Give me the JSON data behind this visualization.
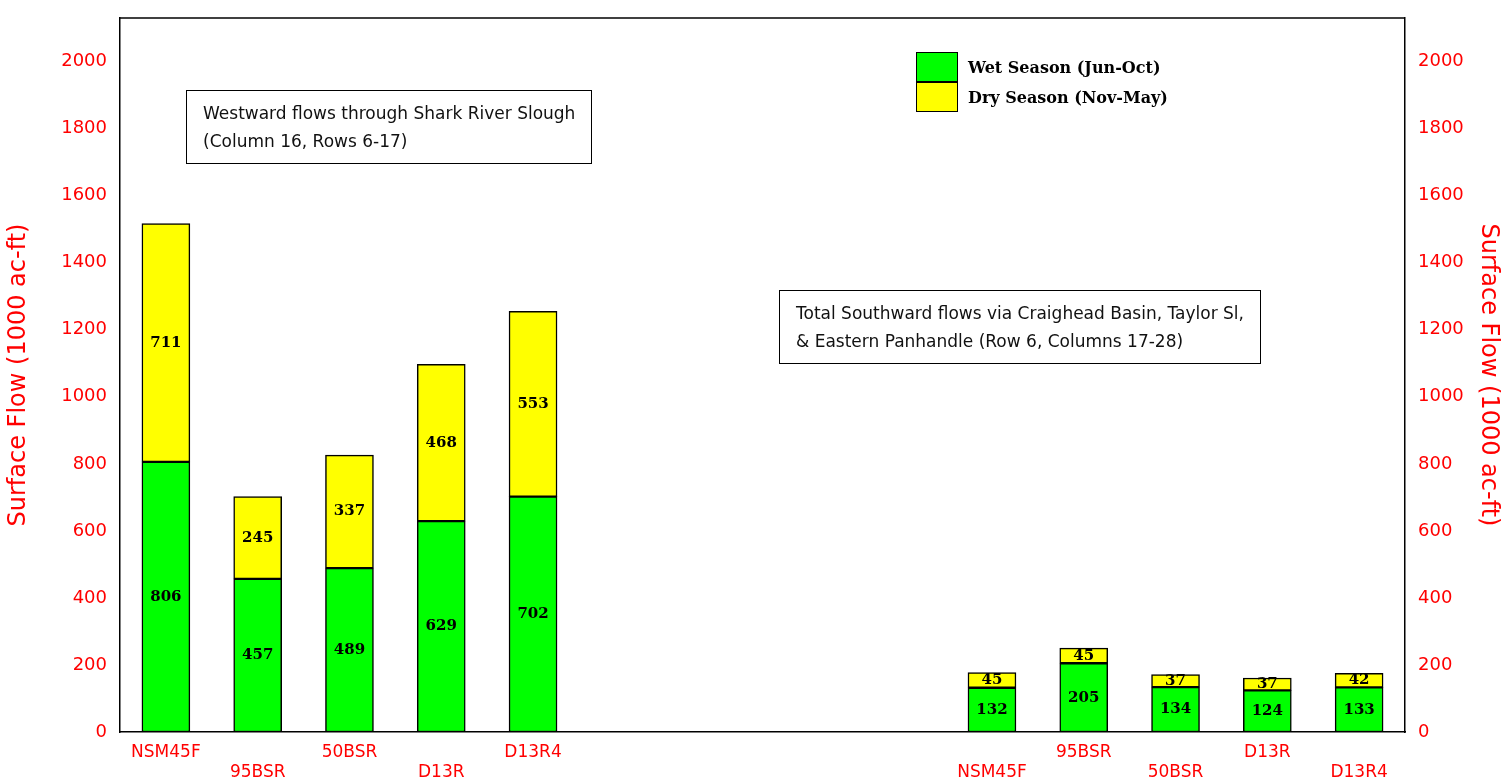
{
  "chart_data": {
    "type": "bar",
    "stacked": true,
    "categories": [
      "NSM45F",
      "95BSR",
      "50BSR",
      "D13R",
      "D13R4",
      null,
      null,
      null,
      null,
      "NSM45F",
      "95BSR",
      "50BSR",
      "D13R",
      "D13R4"
    ],
    "series": [
      {
        "name": "Wet Season (Jun-Oct)",
        "color": "#00ff00",
        "values": [
          806,
          457,
          489,
          629,
          702,
          null,
          null,
          null,
          null,
          132,
          205,
          134,
          124,
          133
        ]
      },
      {
        "name": "Dry Season (Nov-May)",
        "color": "#ffff00",
        "values": [
          711,
          245,
          337,
          468,
          553,
          null,
          null,
          null,
          null,
          45,
          45,
          37,
          37,
          42
        ]
      }
    ],
    "ylabel": "Surface Flow (1000 ac-ft)",
    "y2label": "Surface Flow (1000 ac-ft)",
    "ylim": [
      0,
      2130
    ],
    "yticks": [
      0,
      200,
      400,
      600,
      800,
      1000,
      1200,
      1400,
      1600,
      1800,
      2000
    ],
    "y2lim": [
      0,
      2130
    ],
    "y2ticks": [
      0,
      200,
      400,
      600,
      800,
      1000,
      1200,
      1400,
      1600,
      1800,
      2000
    ],
    "data_labels": true,
    "legend": "top right",
    "grid": false,
    "annotations": [
      "Westward flows through Shark River Slough\n(Column 16, Rows 6-17)",
      "Total Southward flows via Craighead Basin, Taylor Sl,\n& Eastern Panhandle (Row 6, Columns 17-28)"
    ]
  }
}
